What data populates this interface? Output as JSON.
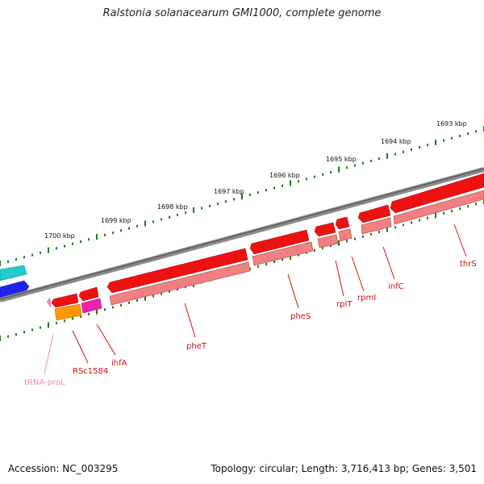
{
  "title": "Ralstonia solanacearum GMI1000, complete genome",
  "footer": {
    "accession": "Accession: NC_003295",
    "summary": "Topology: circular; Length: 3,716,413 bp; Genes: 3,501"
  },
  "colors": {
    "backbone": "#777777",
    "ticks": "#1a7a1a",
    "gene": "#ee1111",
    "gene_light": "#f28080",
    "gene_dark": "#a04040",
    "trna": "#ee88bb",
    "misc_orange": "#ff9900",
    "misc_magenta": "#ee22aa",
    "cyan": "#22cccc",
    "blue": "#2222ee"
  },
  "ticks": [
    "1693 kbp",
    "1694 kbp",
    "1695 kbp",
    "1696 kbp",
    "1697 kbp",
    "1698 kbp",
    "1699 kbp",
    "1700 kbp"
  ],
  "genes": [
    {
      "name": "thrS",
      "color": "#cc1111"
    },
    {
      "name": "infC",
      "color": "#cc1111"
    },
    {
      "name": "rpmI",
      "color": "#cc1111"
    },
    {
      "name": "rplT",
      "color": "#cc1111"
    },
    {
      "name": "pheS",
      "color": "#cc1111"
    },
    {
      "name": "pheT",
      "color": "#cc1111"
    },
    {
      "name": "ihfA",
      "color": "#cc1111"
    },
    {
      "name": "RSc1584",
      "color": "#cc1111"
    },
    {
      "name": "tRNA-proL",
      "color": "#ee88bb"
    }
  ]
}
